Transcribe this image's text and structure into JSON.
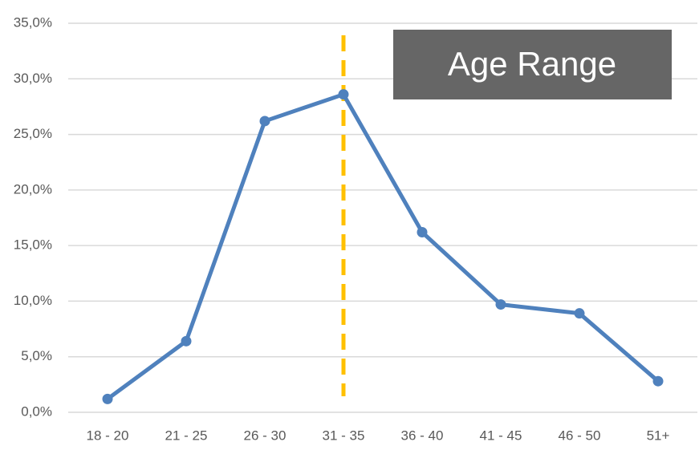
{
  "chart_data": {
    "type": "line",
    "title": "Age Range",
    "categories": [
      "18 - 20",
      "21 - 25",
      "26 - 30",
      "31 - 35",
      "36 - 40",
      "41 - 45",
      "46 - 50",
      "51+"
    ],
    "series": [
      {
        "color": "#4f81bd",
        "values": [
          1.2,
          6.4,
          26.2,
          28.6,
          16.2,
          9.7,
          8.9,
          2.8
        ]
      }
    ],
    "ylim": [
      0,
      35
    ],
    "yticks": [
      {
        "value": 0,
        "label": "0,0%"
      },
      {
        "value": 5,
        "label": "5,0%"
      },
      {
        "value": 10,
        "label": "10,0%"
      },
      {
        "value": 15,
        "label": "15,0%"
      },
      {
        "value": 20,
        "label": "20,0%"
      },
      {
        "value": 25,
        "label": "25,0%"
      },
      {
        "value": 30,
        "label": "30,0%"
      },
      {
        "value": 35,
        "label": "35,0%"
      }
    ],
    "grid": true,
    "reference_line": {
      "category_index": 3,
      "color": "#ffc000"
    }
  }
}
